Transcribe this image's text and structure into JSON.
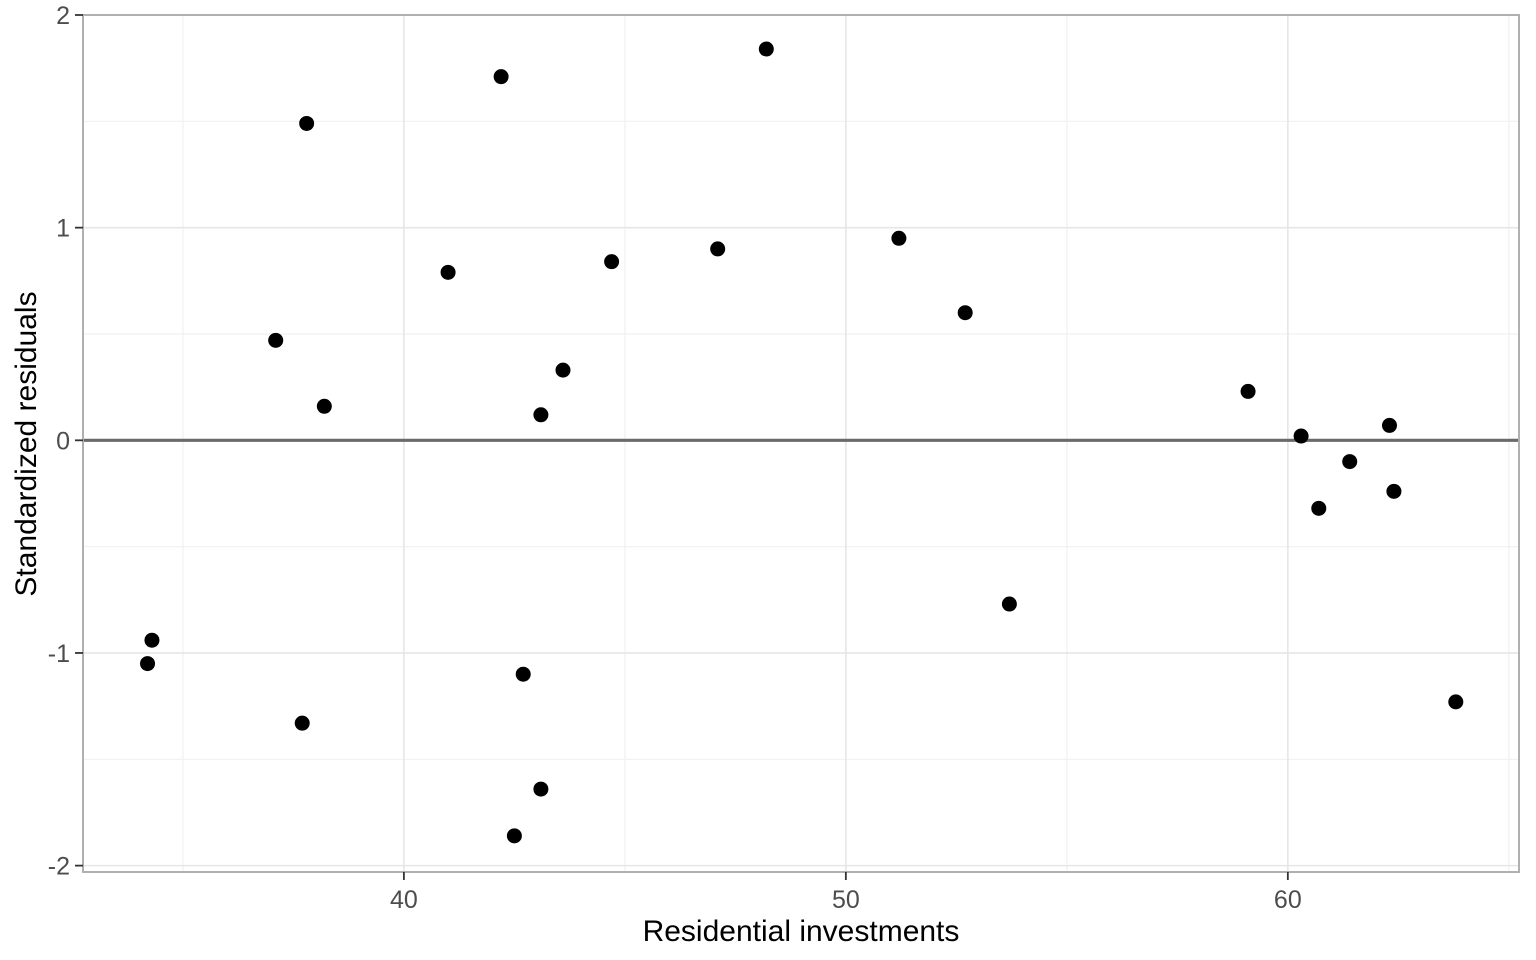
{
  "chart_data": {
    "type": "scatter",
    "title": "",
    "xlabel": "Residential investments",
    "ylabel": "Standardized residuals",
    "xlim": [
      32.74,
      65.23
    ],
    "ylim": [
      -2.03,
      2.0
    ],
    "x_ticks": [
      40,
      50,
      60
    ],
    "x_tick_labels": [
      "40",
      "50",
      "60"
    ],
    "x_minor_ticks": [
      35,
      45,
      55,
      65
    ],
    "y_ticks": [
      -2,
      -1,
      0,
      1,
      2
    ],
    "y_tick_labels": [
      "-2",
      "-1",
      "0",
      "1",
      "2"
    ],
    "y_minor_ticks": [
      -1.5,
      -0.5,
      0.5,
      1.5
    ],
    "grid": true,
    "legend": false,
    "reference_line_y": 0,
    "series": [
      {
        "name": "standardized-residuals",
        "points": [
          {
            "x": 34.2,
            "y": -1.05
          },
          {
            "x": 34.3,
            "y": -0.94
          },
          {
            "x": 37.1,
            "y": 0.47
          },
          {
            "x": 37.7,
            "y": -1.33
          },
          {
            "x": 37.8,
            "y": 1.49
          },
          {
            "x": 38.2,
            "y": 0.16
          },
          {
            "x": 41.0,
            "y": 0.79
          },
          {
            "x": 42.2,
            "y": 1.71
          },
          {
            "x": 42.5,
            "y": -1.86
          },
          {
            "x": 42.7,
            "y": -1.1
          },
          {
            "x": 43.1,
            "y": -1.64
          },
          {
            "x": 43.1,
            "y": 0.12
          },
          {
            "x": 43.6,
            "y": 0.33
          },
          {
            "x": 44.7,
            "y": 0.84
          },
          {
            "x": 47.1,
            "y": 0.9
          },
          {
            "x": 48.2,
            "y": 1.84
          },
          {
            "x": 51.2,
            "y": 0.95
          },
          {
            "x": 52.7,
            "y": 0.6
          },
          {
            "x": 53.7,
            "y": -0.77
          },
          {
            "x": 59.1,
            "y": 0.23
          },
          {
            "x": 60.3,
            "y": 0.02
          },
          {
            "x": 60.7,
            "y": -0.32
          },
          {
            "x": 61.4,
            "y": -0.1
          },
          {
            "x": 62.3,
            "y": 0.07
          },
          {
            "x": 62.4,
            "y": -0.24
          },
          {
            "x": 63.8,
            "y": -1.23
          }
        ]
      }
    ],
    "colors": {
      "point": "#000000",
      "reference_line": "#6a6a6a",
      "grid_major": "#e6e6e6",
      "grid_minor": "#f1f1f1",
      "panel_border": "#b0b0b0",
      "tick": "#333333",
      "tick_label": "#4d4d4d",
      "axis_title": "#000000",
      "background": "#ffffff"
    }
  }
}
